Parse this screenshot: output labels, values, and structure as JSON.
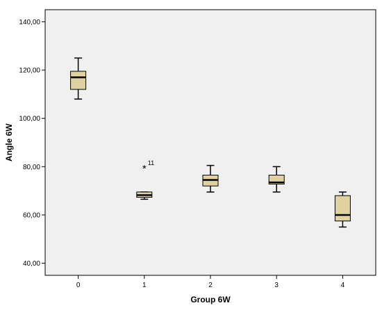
{
  "chart_data": {
    "type": "boxplot",
    "xlabel": "Group 6W",
    "ylabel": "Angle 6W",
    "ylim": [
      35,
      145
    ],
    "yticks": [
      "40,00",
      "60,00",
      "80,00",
      "100,00",
      "120,00",
      "140,00"
    ],
    "ytick_values": [
      40,
      60,
      80,
      100,
      120,
      140
    ],
    "categories": [
      "0",
      "1",
      "2",
      "3",
      "4"
    ],
    "boxes": [
      {
        "category": "0",
        "min": 108,
        "q1": 112,
        "median": 117,
        "q3": 119.5,
        "max": 125
      },
      {
        "category": "1",
        "min": 66.5,
        "q1": 67.3,
        "median": 68.2,
        "q3": 69.5,
        "max": 69.5
      },
      {
        "category": "2",
        "min": 69.5,
        "q1": 72,
        "median": 74.5,
        "q3": 76.5,
        "max": 80.5
      },
      {
        "category": "3",
        "min": 69.5,
        "q1": 72.8,
        "median": 73.5,
        "q3": 76.5,
        "max": 80
      },
      {
        "category": "4",
        "min": 55,
        "q1": 57.5,
        "median": 60,
        "q3": 68,
        "max": 69.5
      }
    ],
    "outliers": [
      {
        "category": "1",
        "value": 79.5,
        "label": "11",
        "marker": "*"
      }
    ],
    "colors": {
      "box_fill": "#ded3a0",
      "plot_background": "#f0f0f0",
      "axis": "#000000"
    },
    "grid": false,
    "legend": "none"
  }
}
